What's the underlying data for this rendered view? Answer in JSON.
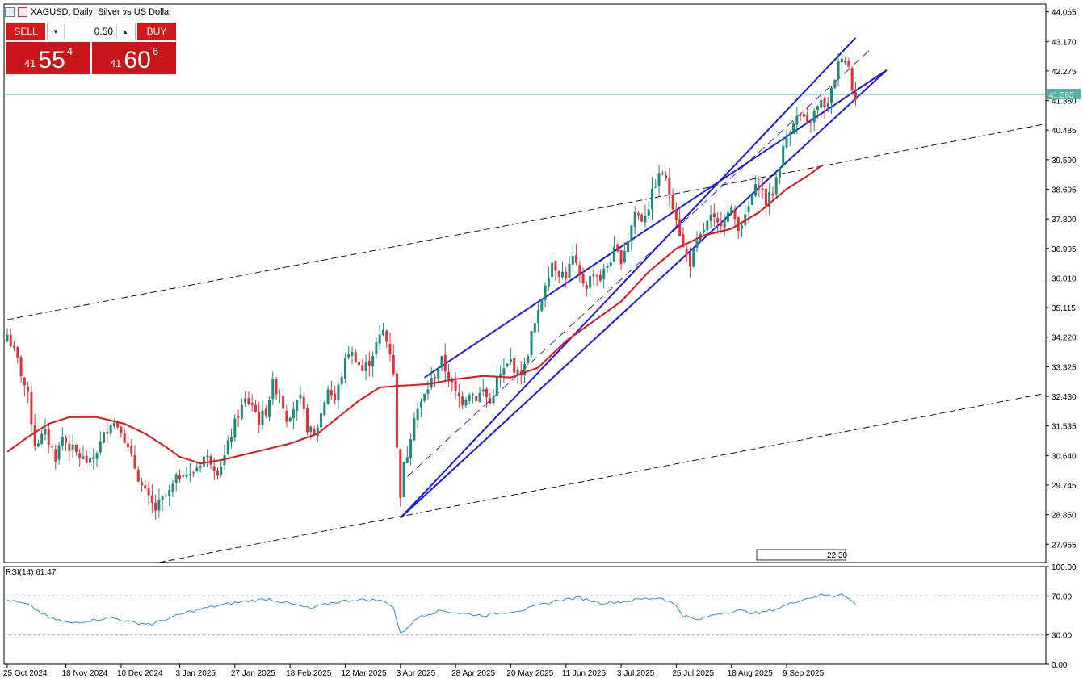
{
  "header": {
    "title": "XAGUSD, Daily:  Silver vs US Dollar"
  },
  "trade_panel": {
    "sell_label": "SELL",
    "buy_label": "BUY",
    "lot_value": "0.50",
    "sell_quote": {
      "prefix": "41",
      "main": "55",
      "sup": "4"
    },
    "buy_quote": {
      "prefix": "41",
      "main": "60",
      "sup": "6"
    }
  },
  "colors": {
    "candle_up": "#1f8a7a",
    "candle_down": "#e0313b",
    "ma": "#e3141b",
    "channel": "#1a1ae0",
    "price_line": "#4fb3a3",
    "rsi": "#2e8fe0",
    "trade_red": "#d11a1a"
  },
  "chart_data": [
    {
      "type": "candlestick",
      "title": "XAGUSD, Daily:  Silver vs US Dollar",
      "ylim": [
        27.4,
        44.3
      ],
      "y_ticks": [
        "44.065",
        "43.170",
        "42.275",
        "41.380",
        "40.485",
        "39.590",
        "38.695",
        "37.800",
        "36.905",
        "36.010",
        "35.115",
        "34.220",
        "33.325",
        "32.430",
        "31.535",
        "30.640",
        "29.745",
        "28.850",
        "27.955"
      ],
      "x_ticks": [
        {
          "label": "25 Oct 2024",
          "index": 0
        },
        {
          "label": "18 Nov 2024",
          "index": 17
        },
        {
          "label": "10 Dec 2024",
          "index": 33
        },
        {
          "label": "3 Jan 2025",
          "index": 50
        },
        {
          "label": "27 Jan 2025",
          "index": 66
        },
        {
          "label": "18 Feb 2025",
          "index": 82
        },
        {
          "label": "12 Mar 2025",
          "index": 98
        },
        {
          "label": "3 Apr 2025",
          "index": 114
        },
        {
          "label": "28 Apr 2025",
          "index": 130
        },
        {
          "label": "20 May 2025",
          "index": 146
        },
        {
          "label": "11 Jun 2025",
          "index": 162
        },
        {
          "label": "3 Jul 2025",
          "index": 178
        },
        {
          "label": "25 Jul 2025",
          "index": 194
        },
        {
          "label": "18 Aug 2025",
          "index": 210
        },
        {
          "label": "9 Sep 2025",
          "index": 226
        }
      ],
      "current_price": "41.565",
      "price_line": 41.565,
      "overlay_label": "22:30",
      "close_anchors": [
        [
          0,
          34.3
        ],
        [
          3,
          33.5
        ],
        [
          6,
          32.4
        ],
        [
          8,
          31.0
        ],
        [
          11,
          31.3
        ],
        [
          14,
          30.6
        ],
        [
          16,
          31.2
        ],
        [
          18,
          30.9
        ],
        [
          21,
          30.6
        ],
        [
          24,
          30.4
        ],
        [
          27,
          31.0
        ],
        [
          30,
          31.7
        ],
        [
          33,
          31.5
        ],
        [
          35,
          30.8
        ],
        [
          37,
          30.3
        ],
        [
          39,
          29.7
        ],
        [
          41,
          29.3
        ],
        [
          43,
          29.0
        ],
        [
          45,
          29.3
        ],
        [
          47,
          29.5
        ],
        [
          49,
          29.9
        ],
        [
          51,
          30.2
        ],
        [
          53,
          30.0
        ],
        [
          55,
          30.3
        ],
        [
          57,
          30.6
        ],
        [
          59,
          30.5
        ],
        [
          61,
          30.2
        ],
        [
          63,
          30.6
        ],
        [
          65,
          31.3
        ],
        [
          67,
          31.9
        ],
        [
          69,
          32.3
        ],
        [
          71,
          32.2
        ],
        [
          73,
          31.7
        ],
        [
          75,
          32.0
        ],
        [
          77,
          32.8
        ],
        [
          79,
          32.5
        ],
        [
          81,
          31.8
        ],
        [
          83,
          32.1
        ],
        [
          85,
          32.3
        ],
        [
          87,
          31.5
        ],
        [
          89,
          31.2
        ],
        [
          91,
          31.9
        ],
        [
          93,
          32.7
        ],
        [
          95,
          32.3
        ],
        [
          97,
          33.1
        ],
        [
          99,
          33.8
        ],
        [
          101,
          33.6
        ],
        [
          103,
          33.2
        ],
        [
          105,
          33.5
        ],
        [
          107,
          34.0
        ],
        [
          109,
          34.4
        ],
        [
          111,
          33.8
        ],
        [
          112,
          33.2
        ],
        [
          113,
          30.8
        ],
        [
          114,
          29.5
        ],
        [
          115,
          30.3
        ],
        [
          116,
          30.7
        ],
        [
          118,
          31.9
        ],
        [
          120,
          32.2
        ],
        [
          122,
          32.7
        ],
        [
          124,
          33.1
        ],
        [
          126,
          33.5
        ],
        [
          128,
          33.0
        ],
        [
          130,
          32.5
        ],
        [
          132,
          32.3
        ],
        [
          134,
          32.6
        ],
        [
          136,
          32.4
        ],
        [
          138,
          32.6
        ],
        [
          140,
          32.2
        ],
        [
          142,
          32.9
        ],
        [
          144,
          33.2
        ],
        [
          146,
          33.5
        ],
        [
          148,
          33.1
        ],
        [
          150,
          33.3
        ],
        [
          152,
          34.3
        ],
        [
          154,
          34.9
        ],
        [
          156,
          35.9
        ],
        [
          158,
          36.5
        ],
        [
          160,
          36.2
        ],
        [
          162,
          36.1
        ],
        [
          164,
          36.6
        ],
        [
          166,
          36.0
        ],
        [
          168,
          35.8
        ],
        [
          170,
          36.2
        ],
        [
          172,
          36.0
        ],
        [
          174,
          36.4
        ],
        [
          176,
          36.8
        ],
        [
          178,
          36.6
        ],
        [
          180,
          37.2
        ],
        [
          182,
          38.0
        ],
        [
          184,
          37.8
        ],
        [
          186,
          38.2
        ],
        [
          188,
          38.9
        ],
        [
          190,
          39.2
        ],
        [
          192,
          38.6
        ],
        [
          194,
          37.9
        ],
        [
          196,
          36.9
        ],
        [
          198,
          36.5
        ],
        [
          200,
          37.0
        ],
        [
          202,
          37.5
        ],
        [
          204,
          37.8
        ],
        [
          206,
          37.6
        ],
        [
          208,
          37.9
        ],
        [
          210,
          38.0
        ],
        [
          212,
          37.6
        ],
        [
          214,
          37.8
        ],
        [
          216,
          38.5
        ],
        [
          218,
          38.9
        ],
        [
          220,
          38.3
        ],
        [
          222,
          38.6
        ],
        [
          224,
          39.5
        ],
        [
          226,
          40.3
        ],
        [
          228,
          40.8
        ],
        [
          230,
          40.9
        ],
        [
          232,
          40.6
        ],
        [
          234,
          41.0
        ],
        [
          236,
          41.3
        ],
        [
          238,
          41.2
        ],
        [
          240,
          42.1
        ],
        [
          242,
          42.8
        ],
        [
          244,
          42.4
        ],
        [
          245,
          41.8
        ],
        [
          246,
          41.56
        ]
      ],
      "ma_anchors": [
        [
          0,
          30.75
        ],
        [
          6,
          31.2
        ],
        [
          12,
          31.6
        ],
        [
          18,
          31.8
        ],
        [
          26,
          31.8
        ],
        [
          34,
          31.6
        ],
        [
          40,
          31.3
        ],
        [
          46,
          30.9
        ],
        [
          50,
          30.6
        ],
        [
          56,
          30.4
        ],
        [
          62,
          30.5
        ],
        [
          68,
          30.65
        ],
        [
          74,
          30.8
        ],
        [
          82,
          31.0
        ],
        [
          90,
          31.3
        ],
        [
          96,
          31.8
        ],
        [
          102,
          32.3
        ],
        [
          108,
          32.7
        ],
        [
          114,
          32.75
        ],
        [
          122,
          32.8
        ],
        [
          130,
          32.95
        ],
        [
          138,
          33.05
        ],
        [
          146,
          33.0
        ],
        [
          154,
          33.3
        ],
        [
          162,
          34.1
        ],
        [
          170,
          34.7
        ],
        [
          178,
          35.3
        ],
        [
          186,
          36.2
        ],
        [
          194,
          36.9
        ],
        [
          202,
          37.3
        ],
        [
          210,
          37.5
        ],
        [
          218,
          38.0
        ],
        [
          226,
          38.7
        ],
        [
          232,
          39.1
        ],
        [
          236,
          39.4
        ]
      ],
      "rsi_anchors": [
        [
          0,
          66
        ],
        [
          6,
          61
        ],
        [
          12,
          48
        ],
        [
          18,
          42
        ],
        [
          24,
          45
        ],
        [
          30,
          48
        ],
        [
          36,
          43
        ],
        [
          42,
          41
        ],
        [
          46,
          46
        ],
        [
          52,
          53
        ],
        [
          58,
          58
        ],
        [
          64,
          62
        ],
        [
          70,
          65
        ],
        [
          76,
          67
        ],
        [
          82,
          62
        ],
        [
          88,
          57
        ],
        [
          94,
          63
        ],
        [
          100,
          66
        ],
        [
          106,
          66
        ],
        [
          110,
          64
        ],
        [
          112,
          58
        ],
        [
          114,
          31
        ],
        [
          116,
          38
        ],
        [
          120,
          50
        ],
        [
          126,
          55
        ],
        [
          132,
          52
        ],
        [
          138,
          50
        ],
        [
          144,
          53
        ],
        [
          150,
          56
        ],
        [
          156,
          62
        ],
        [
          160,
          66
        ],
        [
          166,
          68
        ],
        [
          172,
          63
        ],
        [
          178,
          64
        ],
        [
          184,
          67
        ],
        [
          190,
          68
        ],
        [
          194,
          60
        ],
        [
          196,
          50
        ],
        [
          200,
          45
        ],
        [
          206,
          52
        ],
        [
          212,
          55
        ],
        [
          218,
          52
        ],
        [
          224,
          58
        ],
        [
          230,
          66
        ],
        [
          236,
          71
        ],
        [
          240,
          70
        ],
        [
          242,
          73
        ],
        [
          246,
          61.47
        ]
      ],
      "channel_lines": [
        {
          "style": "solid",
          "p1": [
            114,
            28.75
          ],
          "p2": [
            246,
            43.28
          ]
        },
        {
          "style": "solid",
          "p1": [
            121,
            33.0
          ],
          "p2": [
            255,
            42.3
          ]
        },
        {
          "style": "solid",
          "p1": [
            114,
            28.75
          ],
          "p2": [
            255,
            42.3
          ]
        },
        {
          "style": "dashed",
          "p1": [
            116,
            30.0
          ],
          "p2": [
            250,
            42.9
          ]
        },
        {
          "style": "dashed",
          "p1": [
            0,
            34.75
          ],
          "p2": [
            300,
            40.65
          ]
        },
        {
          "style": "dashed",
          "p1": [
            44,
            27.4
          ],
          "p2": [
            300,
            32.5
          ]
        }
      ]
    },
    {
      "type": "line",
      "title": "RSI(14) 61.47",
      "ylim": [
        0,
        100
      ],
      "y_ticks": [
        "100.00",
        "70.00",
        "30.00",
        "0.00"
      ],
      "levels": [
        70,
        30
      ],
      "last_value": 61.47
    }
  ]
}
